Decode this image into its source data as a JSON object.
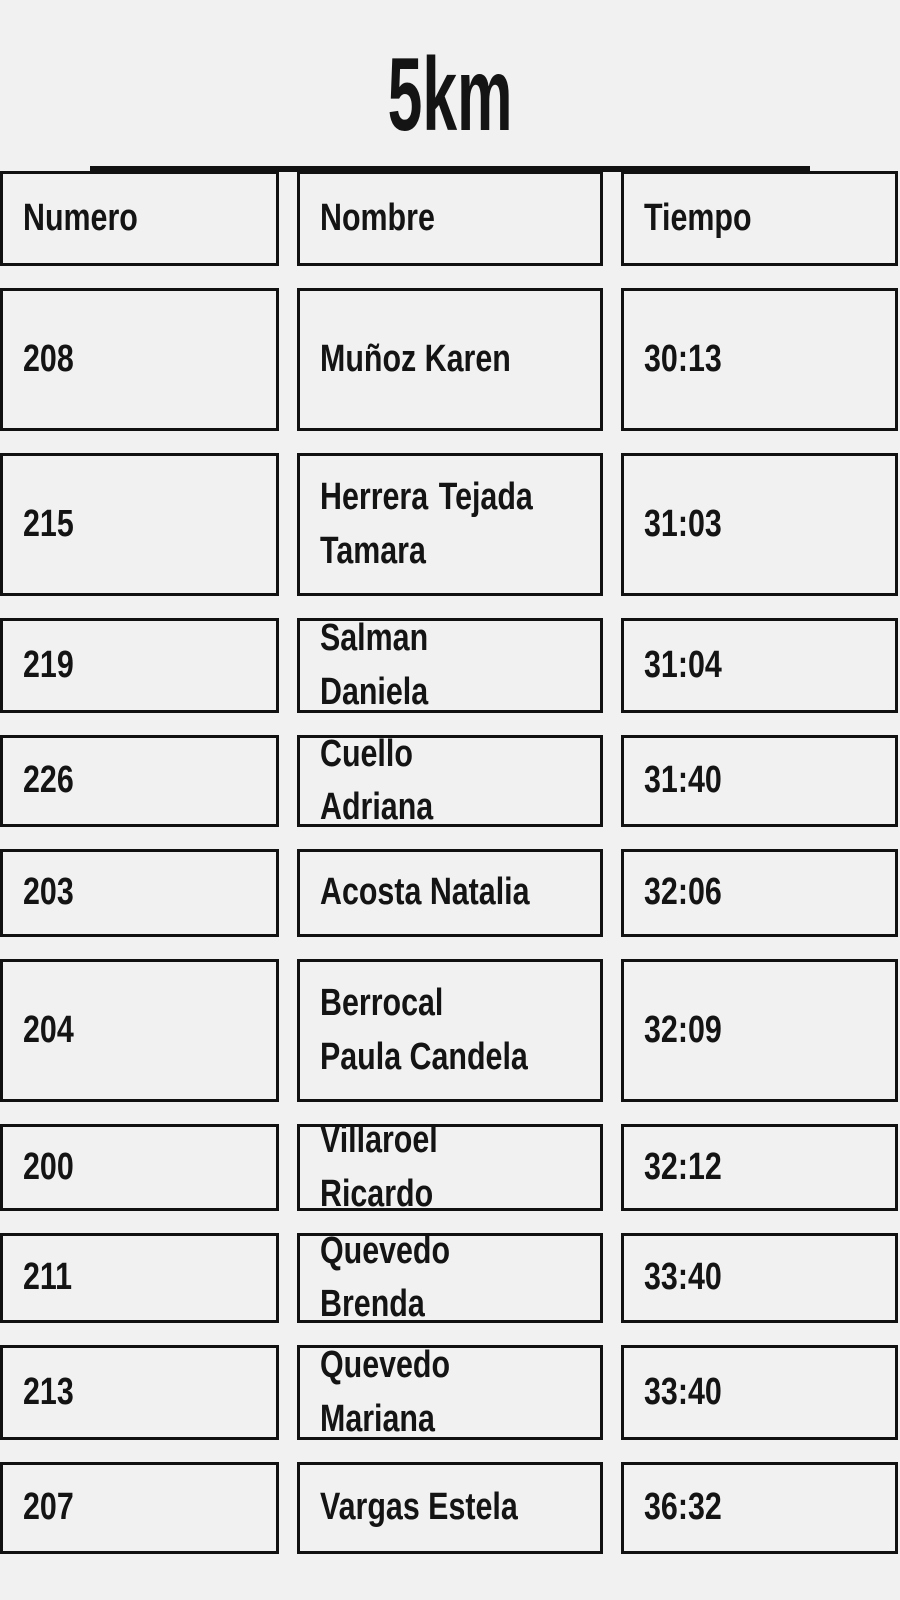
{
  "title": "5km",
  "colors": {
    "background": "#f0f1f0",
    "text": "#141414",
    "border": "#111111",
    "rule": "#111111"
  },
  "table": {
    "headers": [
      "Numero",
      "Nombre",
      "Tiempo"
    ],
    "rows": [
      {
        "numero": "208",
        "nombre": "Muñoz Karen",
        "tiempo": "30:13"
      },
      {
        "numero": "215",
        "nombre": "Herrera Tejada Tamara",
        "tiempo": "31:03"
      },
      {
        "numero": "219",
        "nombre": "Salman Daniela",
        "tiempo": "31:04"
      },
      {
        "numero": "226",
        "nombre": "Cuello Adriana",
        "tiempo": "31:40"
      },
      {
        "numero": "203",
        "nombre": "Acosta Natalia",
        "tiempo": "32:06"
      },
      {
        "numero": "204",
        "nombre": "Berrocal Paula Candela",
        "tiempo": "32:09"
      },
      {
        "numero": "200",
        "nombre": "Villaroel Ricardo",
        "tiempo": "32:12"
      },
      {
        "numero": "211",
        "nombre": "Quevedo Brenda",
        "tiempo": "33:40"
      },
      {
        "numero": "213",
        "nombre": "Quevedo Mariana",
        "tiempo": "33:40"
      },
      {
        "numero": "207",
        "nombre": "Vargas Estela",
        "tiempo": "36:32"
      }
    ]
  }
}
